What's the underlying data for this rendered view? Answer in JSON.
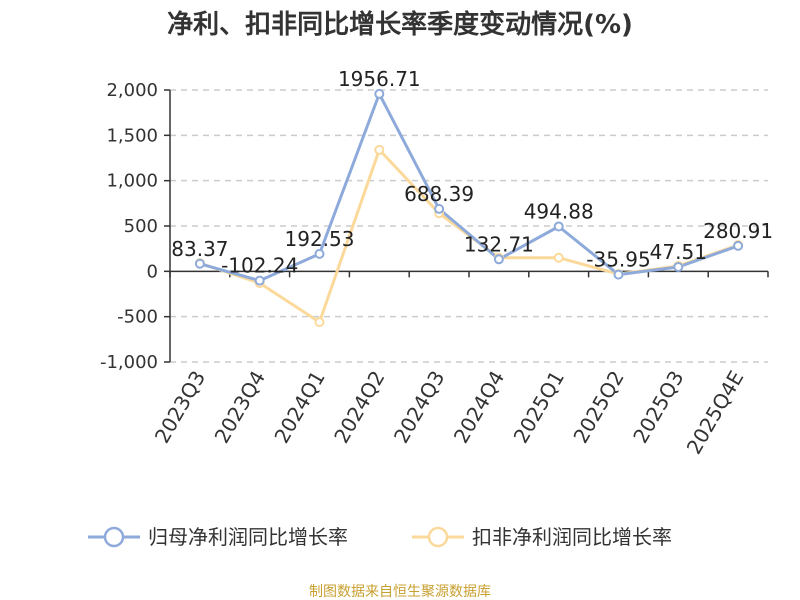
{
  "chart_data": {
    "type": "line",
    "title": "净利、扣非同比增长率季度变动情况(%)",
    "categories": [
      "2023Q3",
      "2023Q4",
      "2024Q1",
      "2024Q2",
      "2024Q3",
      "2024Q4",
      "2025Q1",
      "2025Q2",
      "2025Q3",
      "2025Q4E"
    ],
    "series": [
      {
        "name": "归母净利润同比增长率",
        "color": "#8eaadb",
        "values": [
          83.37,
          -102.24,
          192.53,
          1956.71,
          688.39,
          132.71,
          494.88,
          -35.95,
          47.51,
          280.91
        ],
        "labels": [
          "83.37",
          "-102.24",
          "192.53",
          "1956.71",
          "688.39",
          "132.71",
          "494.88",
          "-35.95",
          "47.51",
          "280.91"
        ]
      },
      {
        "name": "扣非净利润同比增长率",
        "color": "#fbd99b",
        "values": [
          90,
          -130,
          -560,
          1340,
          640,
          150,
          150,
          -30,
          60,
          290
        ]
      }
    ],
    "ylim": [
      -1000,
      2000
    ],
    "yticks": [
      2000,
      1500,
      1000,
      500,
      0,
      -500,
      -1000
    ],
    "ytick_labels": [
      "2,000",
      "1,500",
      "1,000",
      "500",
      "0",
      "-500",
      "-1,000"
    ],
    "grid": true,
    "legend_position": "bottom-center",
    "xlabel": "",
    "ylabel": ""
  },
  "legend": [
    {
      "label": "归母净利润同比增长率",
      "color": "#8eaadb"
    },
    {
      "label": "扣非净利润同比增长率",
      "color": "#fbd99b"
    }
  ],
  "source": "制图数据来自恒生聚源数据库"
}
